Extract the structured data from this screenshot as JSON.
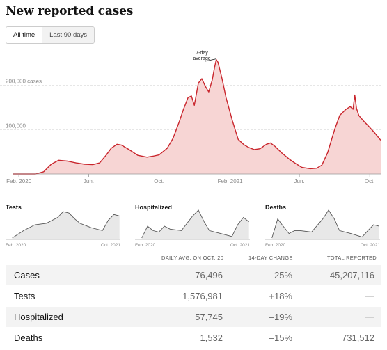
{
  "title": "New reported cases",
  "toggle": {
    "all_time": "All time",
    "last_90": "Last 90 days"
  },
  "main_chart": {
    "annotation_line1": "7-day",
    "annotation_line2": "average"
  },
  "mini_charts": [
    {
      "title": "Tests",
      "x_start": "Feb. 2020",
      "x_end": "Oct. 2021"
    },
    {
      "title": "Hospitalized",
      "x_start": "Feb. 2020",
      "x_end": "Oct. 2021"
    },
    {
      "title": "Deaths",
      "x_start": "Feb. 2020",
      "x_end": "Oct. 2021"
    }
  ],
  "table": {
    "headers": {
      "daily": "DAILY AVG. ON OCT. 20",
      "change": "14-DAY CHANGE",
      "total": "TOTAL REPORTED"
    },
    "rows": [
      {
        "label": "Cases",
        "daily": "76,496",
        "change": "–25%",
        "total": "45,207,116"
      },
      {
        "label": "Tests",
        "daily": "1,576,981",
        "change": "+18%",
        "total": "—"
      },
      {
        "label": "Hospitalized",
        "daily": "57,745",
        "change": "–19%",
        "total": "—"
      },
      {
        "label": "Deaths",
        "daily": "1,532",
        "change": "–15%",
        "total": "731,512"
      }
    ]
  },
  "colors": {
    "cases_line": "#c9252c",
    "cases_fill": "#f7d5d4",
    "mini_line": "#555555",
    "mini_fill": "#e8e8e8"
  },
  "chart_data": [
    {
      "type": "area",
      "title": "New reported cases",
      "y_tick_labels": [
        "200,000 cases",
        "100,000"
      ],
      "y_ticks": [
        200000,
        100000
      ],
      "ylim": [
        0,
        270000
      ],
      "x_tick_labels": [
        "Feb. 2020",
        "Jun.",
        "Oct.",
        "Feb. 2021",
        "Jun.",
        "Oct."
      ],
      "x_ticks": [
        "2020-02-01",
        "2020-06-01",
        "2020-10-01",
        "2021-02-01",
        "2021-06-01",
        "2021-10-01"
      ],
      "xlim": [
        "2020-01-21",
        "2021-10-20"
      ],
      "grid": "horizontal dashed",
      "series": [
        {
          "x": [
            "2020-01-21",
            "2020-03-01",
            "2020-03-15",
            "2020-03-28",
            "2020-04-10",
            "2020-04-25",
            "2020-05-10",
            "2020-05-25",
            "2020-06-08",
            "2020-06-20",
            "2020-07-01",
            "2020-07-10",
            "2020-07-20",
            "2020-07-28",
            "2020-08-10",
            "2020-08-25",
            "2020-09-10",
            "2020-09-20",
            "2020-10-01",
            "2020-10-15",
            "2020-10-25",
            "2020-11-05",
            "2020-11-12",
            "2020-11-20",
            "2020-11-26",
            "2020-12-01",
            "2020-12-08",
            "2020-12-14",
            "2020-12-20",
            "2020-12-26",
            "2021-01-01",
            "2021-01-05",
            "2021-01-08",
            "2021-01-11",
            "2021-01-18",
            "2021-01-25",
            "2021-02-05",
            "2021-02-15",
            "2021-02-25",
            "2021-03-05",
            "2021-03-15",
            "2021-03-25",
            "2021-04-05",
            "2021-04-12",
            "2021-04-20",
            "2021-05-01",
            "2021-05-15",
            "2021-05-25",
            "2021-06-05",
            "2021-06-20",
            "2021-07-01",
            "2021-07-10",
            "2021-07-20",
            "2021-08-01",
            "2021-08-10",
            "2021-08-20",
            "2021-08-28",
            "2021-09-02",
            "2021-09-05",
            "2021-09-08",
            "2021-09-12",
            "2021-09-20",
            "2021-10-01",
            "2021-10-10",
            "2021-10-20"
          ],
          "y": [
            0,
            0,
            5000,
            22000,
            31000,
            29000,
            25000,
            22000,
            21000,
            25000,
            42000,
            58000,
            67000,
            65000,
            55000,
            42000,
            38000,
            40000,
            43000,
            58000,
            80000,
            118000,
            145000,
            172000,
            176000,
            155000,
            205000,
            215000,
            198000,
            185000,
            212000,
            240000,
            258000,
            252000,
            215000,
            172000,
            120000,
            78000,
            66000,
            60000,
            55000,
            57000,
            67000,
            70000,
            62000,
            48000,
            33000,
            24000,
            15000,
            12000,
            13000,
            20000,
            48000,
            100000,
            132000,
            145000,
            152000,
            146000,
            178000,
            148000,
            132000,
            120000,
            105000,
            92000,
            76000
          ]
        }
      ]
    },
    {
      "type": "area",
      "title": "Tests",
      "x_tick_labels": [
        "Feb. 2020",
        "Oct. 2021"
      ],
      "series": [
        {
          "x": [
            "2020-03",
            "2020-05",
            "2020-07",
            "2020-09",
            "2020-11",
            "2020-12",
            "2021-01",
            "2021-02",
            "2021-03",
            "2021-05",
            "2021-07",
            "2021-08",
            "2021-09",
            "2021-10"
          ],
          "y": [
            0.05,
            0.3,
            0.5,
            0.55,
            0.75,
            0.95,
            0.9,
            0.7,
            0.55,
            0.4,
            0.3,
            0.65,
            0.85,
            0.8
          ]
        }
      ]
    },
    {
      "type": "area",
      "title": "Hospitalized",
      "x_tick_labels": [
        "Feb. 2020",
        "Oct. 2021"
      ],
      "series": [
        {
          "x": [
            "2020-03",
            "2020-04",
            "2020-05",
            "2020-06",
            "2020-07",
            "2020-08",
            "2020-10",
            "2020-12",
            "2021-01",
            "2021-02",
            "2021-03",
            "2021-05",
            "2021-07",
            "2021-08",
            "2021-09",
            "2021-10"
          ],
          "y": [
            0.05,
            0.45,
            0.3,
            0.25,
            0.45,
            0.35,
            0.3,
            0.8,
            1.0,
            0.6,
            0.3,
            0.2,
            0.1,
            0.5,
            0.75,
            0.6
          ]
        }
      ]
    },
    {
      "type": "area",
      "title": "Deaths",
      "x_tick_labels": [
        "Feb. 2020",
        "Oct. 2021"
      ],
      "series": [
        {
          "x": [
            "2020-03",
            "2020-04",
            "2020-05",
            "2020-06",
            "2020-07",
            "2020-08",
            "2020-10",
            "2020-12",
            "2021-01",
            "2021-02",
            "2021-03",
            "2021-05",
            "2021-07",
            "2021-08",
            "2021-09",
            "2021-10"
          ],
          "y": [
            0.05,
            0.7,
            0.45,
            0.2,
            0.3,
            0.3,
            0.25,
            0.7,
            1.0,
            0.7,
            0.3,
            0.2,
            0.08,
            0.3,
            0.5,
            0.45
          ]
        }
      ]
    }
  ]
}
